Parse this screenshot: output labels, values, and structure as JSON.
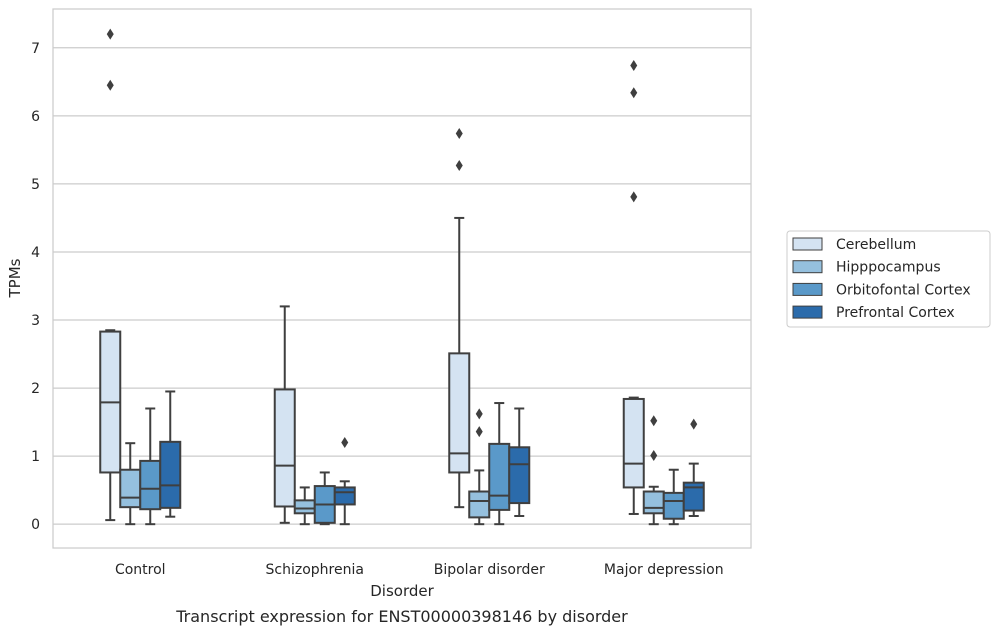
{
  "caption": "Transcript expression for ENST00000398146 by disorder",
  "chart_data": {
    "type": "box",
    "xlabel": "Disorder",
    "ylabel": "TPMs",
    "ylim": [
      -0.35,
      7.57
    ],
    "yticks": [
      0,
      1,
      2,
      3,
      4,
      5,
      6,
      7
    ],
    "grid": "horizontal",
    "legend_position": "right",
    "categories": [
      "Control",
      "Schizophrenia",
      "Bipolar disorder",
      "Major depression"
    ],
    "series": [
      {
        "name": "Cerebellum",
        "color": "#d4e3f2",
        "boxes": [
          {
            "whisker_low": 0.06,
            "q1": 0.76,
            "median": 1.79,
            "q3": 2.83,
            "whisker_high": 2.85,
            "outliers": [
              6.45,
              7.2
            ]
          },
          {
            "whisker_low": 0.02,
            "q1": 0.26,
            "median": 0.86,
            "q3": 1.98,
            "whisker_high": 3.2,
            "outliers": []
          },
          {
            "whisker_low": 0.25,
            "q1": 0.76,
            "median": 1.04,
            "q3": 2.51,
            "whisker_high": 4.5,
            "outliers": [
              5.27,
              5.74
            ]
          },
          {
            "whisker_low": 0.15,
            "q1": 0.54,
            "median": 0.89,
            "q3": 1.84,
            "whisker_high": 1.86,
            "outliers": [
              4.81,
              6.34,
              6.74
            ]
          }
        ]
      },
      {
        "name": "Hipppocampus",
        "color": "#95c0de",
        "boxes": [
          {
            "whisker_low": 0.0,
            "q1": 0.25,
            "median": 0.39,
            "q3": 0.8,
            "whisker_high": 1.19,
            "outliers": []
          },
          {
            "whisker_low": 0.0,
            "q1": 0.16,
            "median": 0.23,
            "q3": 0.35,
            "whisker_high": 0.54,
            "outliers": []
          },
          {
            "whisker_low": 0.0,
            "q1": 0.1,
            "median": 0.34,
            "q3": 0.48,
            "whisker_high": 0.79,
            "outliers": [
              1.36,
              1.62
            ]
          },
          {
            "whisker_low": 0.0,
            "q1": 0.16,
            "median": 0.24,
            "q3": 0.48,
            "whisker_high": 0.55,
            "outliers": [
              1.01,
              1.52
            ]
          }
        ]
      },
      {
        "name": "Orbitofontal Cortex",
        "color": "#5a99c9",
        "boxes": [
          {
            "whisker_low": 0.0,
            "q1": 0.22,
            "median": 0.52,
            "q3": 0.93,
            "whisker_high": 1.7,
            "outliers": []
          },
          {
            "whisker_low": 0.0,
            "q1": 0.02,
            "median": 0.29,
            "q3": 0.56,
            "whisker_high": 0.76,
            "outliers": []
          },
          {
            "whisker_low": 0.0,
            "q1": 0.21,
            "median": 0.42,
            "q3": 1.18,
            "whisker_high": 1.78,
            "outliers": []
          },
          {
            "whisker_low": 0.0,
            "q1": 0.08,
            "median": 0.34,
            "q3": 0.46,
            "whisker_high": 0.8,
            "outliers": []
          }
        ]
      },
      {
        "name": "Prefrontal Cortex",
        "color": "#2b6bab",
        "boxes": [
          {
            "whisker_low": 0.11,
            "q1": 0.24,
            "median": 0.57,
            "q3": 1.21,
            "whisker_high": 1.95,
            "outliers": []
          },
          {
            "whisker_low": 0.0,
            "q1": 0.29,
            "median": 0.47,
            "q3": 0.54,
            "whisker_high": 0.63,
            "outliers": [
              1.2
            ]
          },
          {
            "whisker_low": 0.12,
            "q1": 0.31,
            "median": 0.88,
            "q3": 1.13,
            "whisker_high": 1.7,
            "outliers": []
          },
          {
            "whisker_low": 0.12,
            "q1": 0.2,
            "median": 0.54,
            "q3": 0.61,
            "whisker_high": 0.89,
            "outliers": [
              1.47
            ]
          }
        ]
      }
    ]
  }
}
